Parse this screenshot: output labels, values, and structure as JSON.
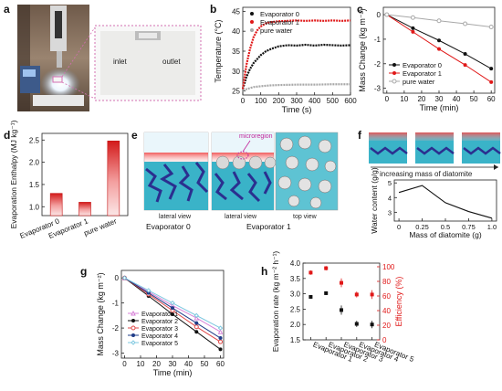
{
  "panel_letters": [
    "a",
    "b",
    "c",
    "d",
    "e",
    "f",
    "g",
    "h"
  ],
  "photo": {
    "inlet_label": "inlet",
    "outlet_label": "outlet"
  },
  "schematic_e": {
    "left_caption": "Evaporator 0",
    "right_caption": "Evaporator 1",
    "lateral_view": "lateral view",
    "top_view": "top view",
    "microregion": "microregion"
  },
  "schematic_f": {
    "caption": "increasing mass of diatomite"
  },
  "colors": {
    "black": "#111111",
    "red": "#e01818",
    "gray": "#a8a8a8",
    "pink": "#d883d8",
    "g_red": "#e04848",
    "navy": "#1f3c88",
    "cyan": "#7fc8e0"
  },
  "chart_data": [
    {
      "id": "b",
      "type": "line",
      "xlabel": "Time (s)",
      "ylabel": "Temperature (°C)",
      "xlim": [
        0,
        600
      ],
      "ylim": [
        24,
        46
      ],
      "xticks": [
        "0",
        "100",
        "200",
        "300",
        "400",
        "500",
        "600"
      ],
      "yticks": [
        "25",
        "30",
        "35",
        "40",
        "45"
      ],
      "legend_position": "top-left",
      "series": [
        {
          "name": "Evaporator 0",
          "x": [
            0,
            20,
            40,
            60,
            80,
            100,
            130,
            160,
            200,
            250,
            300,
            350,
            400,
            450,
            500,
            550,
            600
          ],
          "y": [
            25.5,
            28.5,
            30.5,
            32,
            33,
            34,
            35,
            35.6,
            36.2,
            36.5,
            36.4,
            36.6,
            36.4,
            36.6,
            36.5,
            36.4,
            36.5
          ]
        },
        {
          "name": "Evaporator 1",
          "x": [
            0,
            20,
            40,
            60,
            80,
            100,
            130,
            160,
            200,
            250,
            300,
            350,
            400,
            450,
            500,
            550,
            600
          ],
          "y": [
            25.5,
            31.5,
            35.5,
            38.5,
            40.2,
            41.2,
            42,
            42.3,
            42.5,
            42.6,
            42.7,
            42.6,
            42.7,
            42.6,
            42.7,
            42.6,
            42.7
          ]
        },
        {
          "name": "pure water",
          "x": [
            0,
            30,
            60,
            100,
            150,
            200,
            300,
            400,
            500,
            600
          ],
          "y": [
            25.2,
            25.6,
            26,
            26.2,
            26.4,
            26.5,
            26.6,
            26.6,
            26.7,
            26.7
          ]
        }
      ]
    },
    {
      "id": "c",
      "type": "line",
      "xlabel": "Time (min)",
      "ylabel": "Mass Change (kg m⁻²)",
      "xlim": [
        -2,
        62
      ],
      "ylim": [
        -3.2,
        0.3
      ],
      "xticks": [
        "0",
        "10",
        "20",
        "30",
        "40",
        "50",
        "60"
      ],
      "yticks": [
        "0",
        "-1",
        "-2",
        "-3"
      ],
      "legend_position": "bottom-left",
      "series": [
        {
          "name": "Evaporator 0",
          "x": [
            0,
            15,
            30,
            45,
            60
          ],
          "y": [
            0,
            -0.55,
            -1.05,
            -1.6,
            -2.2
          ]
        },
        {
          "name": "Evaporator 1",
          "x": [
            0,
            15,
            30,
            45,
            60
          ],
          "y": [
            0,
            -0.7,
            -1.4,
            -2.05,
            -2.75
          ]
        },
        {
          "name": "pure water",
          "x": [
            0,
            15,
            30,
            45,
            60
          ],
          "y": [
            0,
            -0.12,
            -0.25,
            -0.37,
            -0.5
          ]
        }
      ]
    },
    {
      "id": "d",
      "type": "bar",
      "ylabel": "Evaporation Enthalpy (MJ kg⁻¹)",
      "categories": [
        "Evaporator 0",
        "Evaporator 1",
        "pure water"
      ],
      "values": [
        1.3,
        1.1,
        2.48
      ],
      "ylim": [
        0.8,
        2.65
      ],
      "yticks": [
        "1.0",
        "1.5",
        "2.0",
        "2.5"
      ]
    },
    {
      "id": "f",
      "type": "line",
      "xlabel": "Mass of diatomite (g)",
      "ylabel": "Water content (g/g)",
      "xticks": [
        "0",
        "0.25",
        "0.5",
        "0.75",
        "1.0"
      ],
      "yticks": [
        "3",
        "4",
        "5"
      ],
      "xlim": [
        -0.05,
        1.05
      ],
      "ylim": [
        2.4,
        5.2
      ],
      "series": [
        {
          "x": [
            0,
            0.25,
            0.5,
            0.75,
            1.0
          ],
          "y": [
            4.35,
            4.82,
            3.65,
            3.05,
            2.6
          ]
        }
      ]
    },
    {
      "id": "g",
      "type": "line",
      "xlabel": "Time (min)",
      "ylabel": "Mass Change (kg m⁻²)",
      "xlim": [
        -2,
        62
      ],
      "ylim": [
        -3.2,
        0.3
      ],
      "xticks": [
        "0",
        "10",
        "20",
        "30",
        "40",
        "50",
        "60"
      ],
      "yticks": [
        "0",
        "-1",
        "-2",
        "-3"
      ],
      "legend_position": "bottom-left",
      "series": [
        {
          "name": "Evaporator 1",
          "x": [
            0,
            15,
            30,
            45,
            60
          ],
          "y": [
            0,
            -0.55,
            -1.1,
            -1.6,
            -2.15
          ]
        },
        {
          "name": "Evaporator 2",
          "x": [
            0,
            15,
            30,
            45,
            60
          ],
          "y": [
            0,
            -0.72,
            -1.45,
            -2.15,
            -2.85
          ]
        },
        {
          "name": "Evaporator 3",
          "x": [
            0,
            15,
            30,
            45,
            60
          ],
          "y": [
            0,
            -0.65,
            -1.3,
            -1.95,
            -2.55
          ]
        },
        {
          "name": "Evaporator 4",
          "x": [
            0,
            15,
            30,
            45,
            60
          ],
          "y": [
            0,
            -0.6,
            -1.2,
            -1.8,
            -2.4
          ]
        },
        {
          "name": "Evaporator 5",
          "x": [
            0,
            15,
            30,
            45,
            60
          ],
          "y": [
            0,
            -0.5,
            -1.0,
            -1.5,
            -2.0
          ]
        }
      ]
    },
    {
      "id": "h",
      "type": "scatter",
      "ylabel": "Evaporation rate (kg m⁻² h⁻¹)",
      "y2label": "Efficiency (%)",
      "categories": [
        "Evaporator 1",
        "Evaporator 2",
        "Evaporator 3",
        "Evaporator 4",
        "Evaporator 5"
      ],
      "ylim": [
        1.5,
        4.0
      ],
      "y2lim": [
        0,
        105
      ],
      "yticks": [
        "1.5",
        "2.0",
        "2.5",
        "3.0",
        "3.5",
        "4.0"
      ],
      "y2ticks": [
        "0",
        "20",
        "40",
        "60",
        "80",
        "100"
      ],
      "series": [
        {
          "name": "Evaporation rate",
          "values": [
            2.9,
            3.02,
            2.47,
            2.02,
            2.0
          ],
          "errors": [
            0.06,
            0.06,
            0.15,
            0.1,
            0.12
          ]
        },
        {
          "name": "Efficiency",
          "values": [
            92,
            98,
            78,
            62,
            62
          ],
          "errors": [
            3,
            3,
            6,
            4,
            6
          ]
        }
      ]
    }
  ]
}
